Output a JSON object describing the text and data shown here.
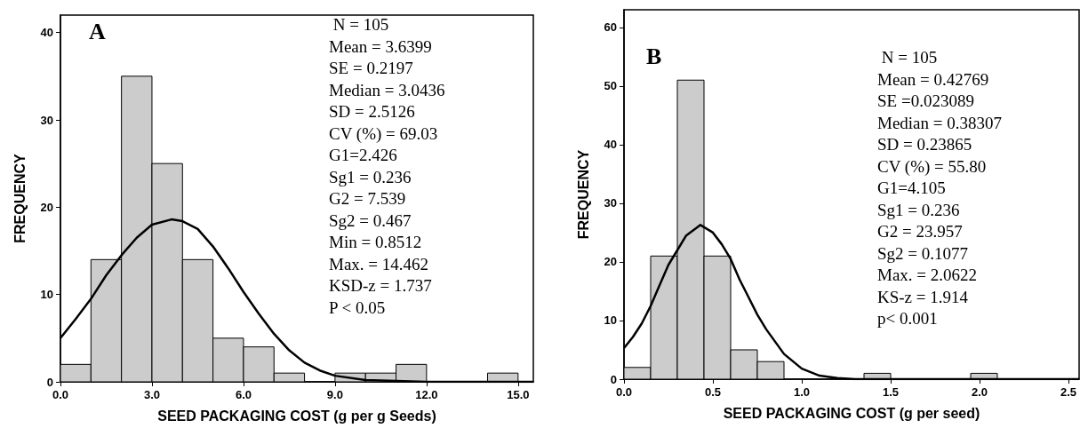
{
  "chart_data": [
    {
      "type": "histogram",
      "title": "A",
      "xlabel": "SEED PACKAGING COST (g per g Seeds)",
      "ylabel": "FREQUENCY",
      "color": "#cccccc",
      "bins": [
        0,
        1,
        2,
        3,
        4,
        5,
        6,
        7,
        8,
        9,
        10,
        11,
        12,
        13,
        14,
        15
      ],
      "values": [
        2,
        14,
        35,
        25,
        14,
        5,
        4,
        1,
        0,
        1,
        1,
        2,
        0,
        0,
        1
      ],
      "series": [
        {
          "type": "line",
          "color": "#000000",
          "x": [
            0,
            0.5,
            1,
            1.5,
            2,
            2.5,
            3,
            3.64,
            4,
            4.5,
            5,
            5.5,
            6,
            6.5,
            7,
            7.5,
            8,
            8.5,
            9,
            10,
            11,
            12,
            15.5
          ],
          "values": [
            5,
            7.2,
            9.5,
            12.2,
            14.5,
            16.5,
            18,
            18.6,
            18.4,
            17.5,
            15.5,
            13,
            10.3,
            7.8,
            5.5,
            3.6,
            2.2,
            1.3,
            0.7,
            0.2,
            0.1,
            0,
            0
          ]
        }
      ],
      "xlim": [
        0,
        15.5
      ],
      "xticks": [
        {
          "value": 0,
          "label": "0.0"
        },
        {
          "value": 3,
          "label": "3.0"
        },
        {
          "value": 6,
          "label": "6.0"
        },
        {
          "value": 9,
          "label": "9.0"
        },
        {
          "value": 12,
          "label": "12.0"
        },
        {
          "value": 15,
          "label": "15.0"
        }
      ],
      "ylim": [
        0,
        42
      ],
      "yticks": [
        0,
        10,
        20,
        30,
        40
      ],
      "marker": "none",
      "line_style": "solid",
      "annotations": [
        " N = 105",
        "Mean = 3.6399",
        "SE = 0.2197",
        "Median = 3.0436",
        "SD = 2.5126",
        "CV (%) = 69.03",
        "G1=2.426",
        "Sg1 = 0.236",
        "G2 = 7.539",
        "Sg2 = 0.467",
        "Min = 0.8512",
        "Max. = 14.462",
        "KSD-z = 1.737",
        "P < 0.05"
      ]
    },
    {
      "type": "histogram",
      "title": "B",
      "xlabel": "SEED PACKAGING COST (g per seed)",
      "ylabel": "FREQUENCY",
      "color": "#cccccc",
      "bins": [
        0,
        0.15,
        0.3,
        0.45,
        0.6,
        0.75,
        0.9,
        1.05,
        1.2,
        1.35,
        1.5,
        1.65,
        1.8,
        1.95,
        2.1
      ],
      "values": [
        2,
        21,
        51,
        21,
        5,
        3,
        0,
        0,
        0,
        1,
        0,
        0,
        0,
        1
      ],
      "series": [
        {
          "type": "line",
          "color": "#000000",
          "x": [
            0,
            0.05,
            0.1,
            0.15,
            0.2,
            0.25,
            0.3,
            0.35,
            0.43,
            0.5,
            0.55,
            0.6,
            0.65,
            0.7,
            0.75,
            0.8,
            0.9,
            1.0,
            1.1,
            1.2,
            1.3,
            2.56
          ],
          "values": [
            5.3,
            7.2,
            9.5,
            12.5,
            16,
            19.5,
            22,
            24.5,
            26.3,
            25,
            23,
            20.5,
            17,
            14,
            11,
            8.5,
            4.3,
            1.8,
            0.6,
            0.2,
            0,
            0
          ]
        }
      ],
      "xlim": [
        0,
        2.56
      ],
      "xticks": [
        {
          "value": 0,
          "label": "0.0"
        },
        {
          "value": 0.5,
          "label": "0.5"
        },
        {
          "value": 1,
          "label": "1.0"
        },
        {
          "value": 1.5,
          "label": "1.5"
        },
        {
          "value": 2,
          "label": "2.0"
        },
        {
          "value": 2.5,
          "label": "2.5"
        }
      ],
      "ylim": [
        0,
        63
      ],
      "yticks": [
        0,
        10,
        20,
        30,
        40,
        50,
        60
      ],
      "marker": "none",
      "line_style": "solid",
      "annotations": [
        " N = 105",
        "Mean = 0.42769",
        "SE =0.023089",
        "Median = 0.38307",
        "SD = 0.23865",
        "CV (%) = 55.80",
        "G1=4.105",
        "Sg1 = 0.236",
        "G2 = 23.957",
        "Sg2 = 0.1077",
        "Max. = 2.0622",
        "KS-z = 1.914",
        "p< 0.001"
      ]
    }
  ]
}
